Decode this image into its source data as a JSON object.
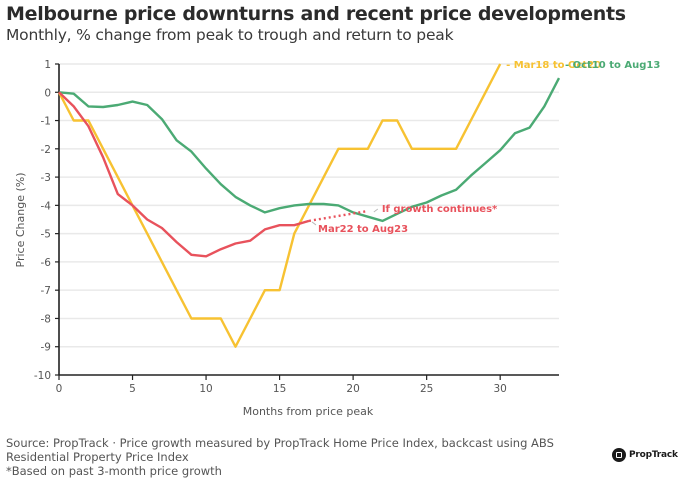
{
  "header": {
    "title": "Melbourne price downturns and recent price developments",
    "subtitle": "Monthly, % change from peak to trough and return to peak"
  },
  "footer": {
    "line1": "Source: PropTrack · Price growth measured by PropTrack Home Price Index, backcast using ABS",
    "line2": "Residential Property Price Index",
    "line3": "*Based on past 3-month price growth",
    "logo_text": "PropTrack"
  },
  "chart_data": {
    "type": "line",
    "title": "Melbourne price downturns and recent price developments",
    "subtitle": "Monthly, % change from peak to trough and return to peak",
    "xlabel": "Months from price peak",
    "ylabel": "Price Change (%)",
    "xlim": [
      0,
      34
    ],
    "ylim": [
      -10,
      1
    ],
    "xticks": [
      0,
      5,
      10,
      15,
      20,
      25,
      30
    ],
    "yticks": [
      1,
      0,
      -1,
      -2,
      -3,
      -4,
      -5,
      -6,
      -7,
      -8,
      -9,
      -10
    ],
    "grid": "horizontal",
    "series": [
      {
        "name": "Mar18 to Oct20",
        "color": "#F7C232",
        "style": "solid",
        "x": [
          0,
          1,
          2,
          3,
          4,
          5,
          6,
          7,
          8,
          9,
          10,
          11,
          12,
          13,
          14,
          15,
          16,
          17,
          18,
          19,
          20,
          21,
          22,
          23,
          24,
          25,
          26,
          27,
          28,
          29,
          30
        ],
        "values": [
          0,
          -1,
          -1,
          -2,
          -3,
          -4,
          -5,
          -6,
          -7,
          -8,
          -8,
          -8,
          -9,
          -8,
          -7,
          -7,
          -5,
          -4,
          -3,
          -2,
          -2,
          -2,
          -1,
          -1,
          -2,
          -2,
          -2,
          -2,
          -1,
          0,
          1
        ]
      },
      {
        "name": "Oct10 to Aug13",
        "color": "#4BAA74",
        "style": "solid",
        "x": [
          0,
          1,
          2,
          3,
          4,
          5,
          6,
          7,
          8,
          9,
          10,
          11,
          12,
          13,
          14,
          15,
          16,
          17,
          18,
          19,
          20,
          21,
          22,
          23,
          24,
          25,
          26,
          27,
          28,
          29,
          30,
          31,
          32,
          33,
          34
        ],
        "values": [
          0,
          -0.05,
          -0.5,
          -0.52,
          -0.45,
          -0.33,
          -0.45,
          -0.95,
          -1.7,
          -2.1,
          -2.7,
          -3.25,
          -3.7,
          -4.0,
          -4.25,
          -4.1,
          -4.0,
          -3.95,
          -3.95,
          -4.0,
          -4.25,
          -4.4,
          -4.55,
          -4.3,
          -4.05,
          -3.9,
          -3.65,
          -3.45,
          -2.95,
          -2.5,
          -2.05,
          -1.45,
          -1.25,
          -0.5,
          0.5
        ]
      },
      {
        "name": "Mar22 to Aug23",
        "color": "#E8525C",
        "style": "solid",
        "x": [
          0,
          1,
          2,
          3,
          4,
          5,
          6,
          7,
          8,
          9,
          10,
          11,
          12,
          13,
          14,
          15,
          16,
          17
        ],
        "values": [
          0,
          -0.5,
          -1.2,
          -2.3,
          -3.6,
          -4.0,
          -4.5,
          -4.8,
          -5.3,
          -5.75,
          -5.8,
          -5.55,
          -5.35,
          -5.25,
          -4.85,
          -4.7,
          -4.7,
          -4.55
        ]
      },
      {
        "name": "If growth continues*",
        "color": "#E8525C",
        "style": "dotted",
        "x": [
          17,
          21
        ],
        "values": [
          -4.55,
          -4.2
        ]
      }
    ],
    "annotations": [
      {
        "text": "- Mar18 to Oct20",
        "series": 0,
        "color": "#F7C232"
      },
      {
        "text": "- Oct10 to Aug13",
        "series": 1,
        "color": "#4BAA74"
      },
      {
        "text": "Mar22 to Aug23",
        "series": 2,
        "color": "#E8525C"
      },
      {
        "text": "If growth continues*",
        "series": 3,
        "color": "#E8525C"
      }
    ]
  }
}
